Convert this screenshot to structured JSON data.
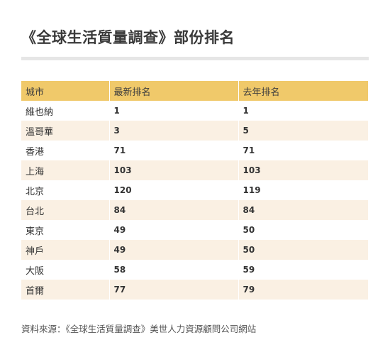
{
  "title": "《全球生活質量調查》部份排名",
  "table": {
    "headers": [
      "城市",
      "最新排名",
      "去年排名"
    ],
    "rows": [
      {
        "city": "維也納",
        "latest": "1",
        "last_year": "1"
      },
      {
        "city": "溫哥華",
        "latest": "3",
        "last_year": "5"
      },
      {
        "city": "香港",
        "latest": "71",
        "last_year": "71"
      },
      {
        "city": "上海",
        "latest": "103",
        "last_year": "103"
      },
      {
        "city": "北京",
        "latest": "120",
        "last_year": "119"
      },
      {
        "city": "台北",
        "latest": "84",
        "last_year": "84"
      },
      {
        "city": "東京",
        "latest": "49",
        "last_year": "50"
      },
      {
        "city": "神戶",
        "latest": "49",
        "last_year": "50"
      },
      {
        "city": "大阪",
        "latest": "58",
        "last_year": "59"
      },
      {
        "city": "首爾",
        "latest": "77",
        "last_year": "79"
      }
    ]
  },
  "source": "資料來源：《全球生活質量調查》美世人力資源顧問公司網站",
  "colors": {
    "header_bg": "#f0c96a",
    "stripe_bg": "#faf0e3",
    "rule": "#e6e6e6"
  }
}
